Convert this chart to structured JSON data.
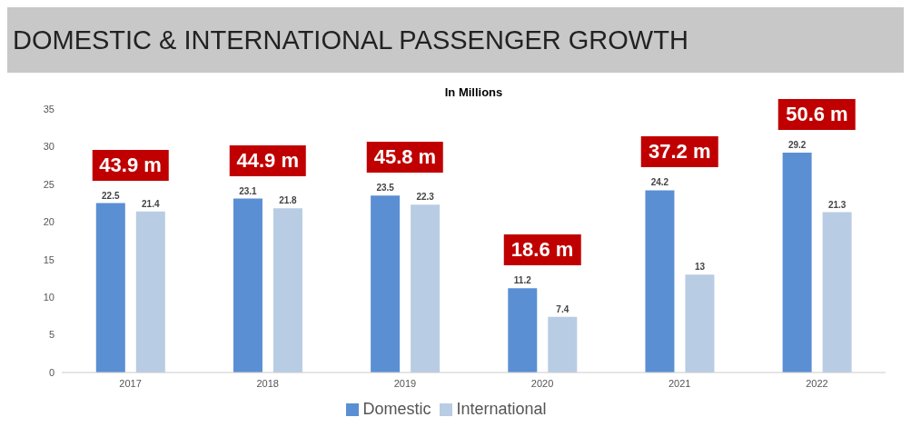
{
  "chart_data": {
    "type": "bar",
    "title": "DOMESTIC & INTERNATIONAL PASSENGER GROWTH",
    "subtitle": "In Millions",
    "categories": [
      "2017",
      "2018",
      "2019",
      "2020",
      "2021",
      "2022"
    ],
    "series": [
      {
        "name": "Domestic",
        "color": "#5b8fd4",
        "values": [
          22.5,
          23.1,
          23.5,
          11.2,
          24.2,
          29.2
        ]
      },
      {
        "name": "International",
        "color": "#b8cce4",
        "values": [
          21.4,
          21.8,
          22.3,
          7.4,
          13,
          21.3
        ]
      }
    ],
    "ylim": [
      0,
      35
    ],
    "yticks": [
      0,
      5,
      10,
      15,
      20,
      25,
      30,
      35
    ],
    "grid": false,
    "legend": "bottom",
    "data_labels": true,
    "annotations": [
      "43.9 m",
      "44.9 m",
      "45.8 m",
      "18.6 m",
      "37.2 m",
      "50.6 m"
    ]
  }
}
